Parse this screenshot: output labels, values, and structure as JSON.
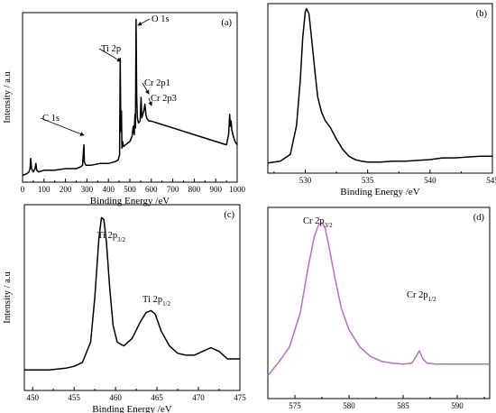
{
  "chart_data": [
    {
      "id": "a",
      "panel_label": "(a)",
      "type": "line",
      "xlabel": "Binding Energy /eV",
      "ylabel": "Intensity / a.u",
      "xlim": [
        0,
        1000
      ],
      "ylim": [
        0,
        100
      ],
      "xticks": [
        0,
        100,
        200,
        300,
        400,
        500,
        600,
        700,
        800,
        900,
        1000
      ],
      "xtick_labels": [
        "0",
        "100",
        "200",
        "300",
        "400",
        "500",
        "600",
        "700",
        "800",
        "900",
        "1000"
      ],
      "yticks_visible": false,
      "series": [
        {
          "color": "#000000",
          "x": [
            0,
            20,
            30,
            35,
            38,
            42,
            50,
            58,
            62,
            66,
            75,
            100,
            150,
            200,
            250,
            270,
            280,
            284,
            286,
            288,
            295,
            320,
            360,
            400,
            430,
            445,
            452,
            455,
            458,
            461,
            463,
            466,
            470,
            480,
            500,
            510,
            516,
            520,
            524,
            526,
            529,
            532,
            535,
            540,
            548,
            552,
            556,
            560,
            565,
            570,
            575,
            578,
            582,
            590,
            600,
            650,
            700,
            750,
            800,
            850,
            900,
            950,
            960,
            965,
            968,
            972,
            975,
            980,
            990,
            1000
          ],
          "y": [
            4,
            5,
            6,
            8,
            14,
            8,
            6,
            8,
            11,
            7,
            6,
            7,
            7,
            8,
            8,
            9,
            10,
            19,
            22,
            12,
            10,
            10,
            11,
            11,
            12,
            13,
            16,
            73,
            30,
            42,
            20,
            24,
            21,
            22,
            24,
            27,
            33,
            28,
            40,
            32,
            96,
            50,
            38,
            35,
            36,
            50,
            38,
            40,
            42,
            46,
            40,
            38,
            37,
            36,
            36,
            34,
            32,
            30,
            28,
            26,
            24,
            22,
            28,
            40,
            33,
            36,
            31,
            28,
            24,
            22
          ]
        }
      ],
      "annotations": [
        {
          "text": "O 1s",
          "x": 530,
          "y": 96
        },
        {
          "text": "Ti 2p",
          "x": 458,
          "y": 73
        },
        {
          "text": "Cr 2p1",
          "x": 570,
          "y": 47
        },
        {
          "text": "Cr 2p3",
          "x": 577,
          "y": 40
        },
        {
          "text": "C 1s",
          "x": 285,
          "y": 21
        }
      ]
    },
    {
      "id": "b",
      "panel_label": "(b)",
      "type": "line",
      "xlabel": "Binding Energy /eV",
      "ylabel": "",
      "xlim": [
        527,
        545
      ],
      "ylim": [
        0,
        100
      ],
      "xticks": [
        530,
        535,
        540,
        545
      ],
      "xtick_labels": [
        "530",
        "535",
        "540",
        "545"
      ],
      "yticks_visible": false,
      "series": [
        {
          "color": "#000000",
          "x": [
            527,
            528,
            528.8,
            529.3,
            529.6,
            529.8,
            530.0,
            530.1,
            530.3,
            530.5,
            530.8,
            531.0,
            531.3,
            531.6,
            532.0,
            532.5,
            533.0,
            533.5,
            534.0,
            534.5,
            535.0,
            536.0,
            537.0,
            538.0,
            539.0,
            540.0,
            541.0,
            542.0,
            543.0,
            544.0,
            545.0
          ],
          "y": [
            6,
            7,
            11,
            28,
            55,
            80,
            95,
            97,
            94,
            80,
            58,
            45,
            36,
            31,
            27,
            20,
            14,
            10,
            8,
            7,
            6.5,
            6.5,
            7,
            7,
            7.5,
            8,
            9,
            9,
            9.5,
            10,
            10
          ]
        }
      ],
      "annotations": []
    },
    {
      "id": "c",
      "panel_label": "(c)",
      "type": "line",
      "xlabel": "Binding Energy /eV",
      "ylabel": "Intensity / a.u",
      "xlim": [
        449,
        475
      ],
      "ylim": [
        0,
        100
      ],
      "xticks": [
        450,
        455,
        460,
        465,
        470,
        475
      ],
      "xtick_labels": [
        "450",
        "455",
        "460",
        "465",
        "470",
        "475"
      ],
      "yticks_visible": false,
      "series": [
        {
          "color": "#000000",
          "x": [
            449,
            450,
            452,
            454,
            455,
            456,
            457,
            457.5,
            458,
            458.3,
            458.6,
            458.9,
            459.3,
            459.7,
            460.2,
            461,
            462,
            463,
            463.7,
            464.3,
            464.8,
            465.5,
            466.5,
            467.5,
            468.5,
            469.5,
            470.5,
            471.5,
            472.5,
            473.5,
            474,
            475
          ],
          "y": [
            11,
            11,
            11,
            12,
            13,
            15,
            26,
            50,
            82,
            93,
            92,
            80,
            55,
            35,
            26,
            24,
            28,
            37,
            42,
            43,
            41,
            32,
            24,
            20,
            19,
            19,
            21,
            23,
            21,
            17,
            17,
            17
          ]
        }
      ],
      "annotations": [
        {
          "text": "Ti 2p",
          "sub": "3/2",
          "x": 458.5,
          "y": 93
        },
        {
          "text": "Ti 2p",
          "sub": "1/2",
          "x": 464.3,
          "y": 43
        }
      ]
    },
    {
      "id": "d",
      "panel_label": "(d)",
      "type": "line",
      "xlabel": "Binding Energy /eV",
      "ylabel": "",
      "xlim": [
        572.5,
        593
      ],
      "ylim": [
        0,
        100
      ],
      "xticks": [
        575,
        580,
        585,
        590
      ],
      "xtick_labels": [
        "575",
        "580",
        "585",
        "590"
      ],
      "yticks_visible": false,
      "series": [
        {
          "color": "#bf6ac7",
          "x": [
            572.5,
            573.5,
            574.5,
            575.5,
            576.2,
            576.8,
            577.2,
            577.5,
            577.8,
            578.2,
            578.7,
            579.3,
            580,
            581,
            582,
            583,
            584,
            585,
            585.8,
            586.2,
            586.5,
            586.8,
            587.2,
            588,
            589,
            590,
            591,
            592,
            593
          ],
          "y": [
            12,
            19,
            27,
            45,
            68,
            85,
            91,
            92,
            89,
            78,
            63,
            47,
            36,
            27,
            22,
            19.5,
            18.5,
            18,
            18.5,
            22,
            25,
            21,
            18.5,
            18,
            18,
            18,
            18,
            18,
            18
          ]
        }
      ],
      "annotations": [
        {
          "text": "Cr 2p",
          "sub": "3/2",
          "x": 577.5,
          "y": 92
        },
        {
          "text": "Cr 2p",
          "sub": "1/2",
          "x": 586.5,
          "y": 25
        }
      ]
    }
  ]
}
